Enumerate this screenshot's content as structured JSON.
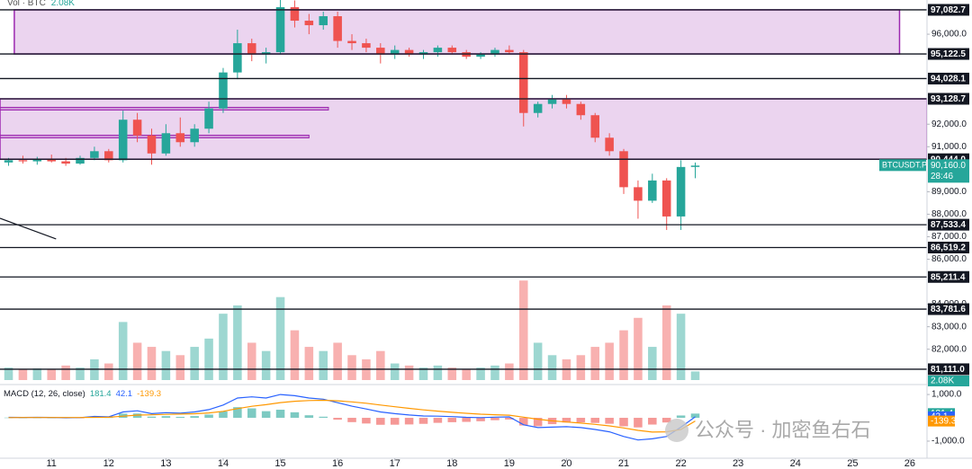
{
  "chart_data": {
    "type": "candlestick",
    "volume_title": "Vol · BTC",
    "x": [
      10.25,
      10.5,
      10.75,
      11,
      11.25,
      11.5,
      11.75,
      12,
      12.25,
      12.5,
      12.75,
      13,
      13.25,
      13.5,
      13.75,
      14,
      14.25,
      14.5,
      14.75,
      15,
      15.25,
      15.5,
      15.75,
      16,
      16.25,
      16.5,
      16.75,
      17,
      17.25,
      17.5,
      17.75,
      18,
      18.25,
      18.5,
      18.75,
      19,
      19.25,
      19.5,
      19.75,
      20,
      20.25,
      20.5,
      20.75,
      21,
      21.25,
      21.5,
      21.75,
      22,
      22.25
    ],
    "open": [
      90300,
      90400,
      90350,
      90450,
      90350,
      90250,
      90500,
      90800,
      90400,
      92200,
      91500,
      90700,
      91600,
      91200,
      91800,
      92700,
      94300,
      95600,
      95100,
      95200,
      97200,
      96600,
      96400,
      96800,
      95700,
      95600,
      95400,
      95100,
      95300,
      95100,
      95200,
      95400,
      95200,
      95000,
      95100,
      95300,
      95200,
      92500,
      92900,
      93100,
      92900,
      92400,
      91400,
      90800,
      89200,
      88600,
      89500,
      87900,
      90100
    ],
    "high": [
      90500,
      90600,
      90550,
      90650,
      90500,
      90600,
      91000,
      90900,
      92600,
      92500,
      91800,
      92000,
      92300,
      92000,
      93000,
      94500,
      96200,
      95800,
      95400,
      97600,
      97500,
      96900,
      97000,
      97000,
      96000,
      95800,
      95600,
      95500,
      95400,
      95300,
      95500,
      95500,
      95300,
      95200,
      95400,
      95500,
      95300,
      93000,
      93300,
      93300,
      93000,
      92500,
      91600,
      90900,
      89500,
      89800,
      89600,
      90400,
      90300
    ],
    "low": [
      90150,
      90250,
      90200,
      90300,
      90150,
      90200,
      90400,
      90300,
      90300,
      91200,
      90200,
      90600,
      91000,
      91000,
      91600,
      92500,
      94000,
      94800,
      94700,
      95100,
      96300,
      96000,
      96200,
      95400,
      95300,
      95200,
      94700,
      94900,
      95000,
      94900,
      95000,
      95100,
      94900,
      94900,
      95000,
      95100,
      91900,
      92300,
      92700,
      92700,
      92200,
      91200,
      90600,
      88900,
      87800,
      88500,
      87300,
      87300,
      89600
    ],
    "close": [
      90400,
      90350,
      90450,
      90350,
      90250,
      90500,
      90800,
      90400,
      92200,
      91500,
      90700,
      91600,
      91200,
      91800,
      92700,
      94300,
      95600,
      95100,
      95200,
      97200,
      96600,
      96400,
      96800,
      95700,
      95600,
      95400,
      95100,
      95300,
      95100,
      95200,
      95400,
      95200,
      95000,
      95100,
      95300,
      95200,
      92500,
      92900,
      93100,
      92900,
      92400,
      91400,
      90800,
      89200,
      88600,
      89500,
      87900,
      90100,
      90160
    ],
    "up_color": "#26a69a",
    "down_color": "#ef5350",
    "xlim": [
      10.1,
      26.3
    ],
    "xticks": [
      11,
      12,
      13,
      14,
      15,
      16,
      17,
      18,
      19,
      20,
      21,
      22,
      23,
      24,
      25,
      26
    ],
    "ylim": [
      80430,
      97520
    ],
    "yticks": [
      {
        "value": 96000,
        "label": "96,000.0"
      },
      {
        "value": 92000,
        "label": "92,000.0"
      },
      {
        "value": 91000,
        "label": "91,000.0"
      },
      {
        "value": 89000,
        "label": "89,000.0"
      },
      {
        "value": 88000,
        "label": "88,000.0"
      },
      {
        "value": 87000,
        "label": "87,000.0"
      },
      {
        "value": 86000,
        "label": "86,000.0"
      },
      {
        "value": 84000,
        "label": "84,000.0"
      },
      {
        "value": 83000,
        "label": "83,000.0"
      },
      {
        "value": 82000,
        "label": "82,000.0"
      }
    ],
    "levels": [
      {
        "value": 97082.7,
        "label": "97,082.7"
      },
      {
        "value": 95122.5,
        "label": "95,122.5"
      },
      {
        "value": 94028.1,
        "label": "94,028.1"
      },
      {
        "value": 93128.7,
        "label": "93,128.7"
      },
      {
        "value": 90444,
        "label": "90,444.0"
      },
      {
        "value": 87533.4,
        "label": "87,533.4"
      },
      {
        "value": 86519.2,
        "label": "86,519.2"
      },
      {
        "value": 85211.4,
        "label": "85,211.4"
      },
      {
        "value": 83781.6,
        "label": "83,781.6"
      },
      {
        "value": 81111,
        "label": "81,111.0"
      }
    ],
    "zones": [
      {
        "from": 95122.5,
        "to": 97082.7,
        "x": [
          10.35,
          25.82
        ]
      },
      {
        "from": 90444,
        "to": 93128.7
      }
    ],
    "zone_color": "#9c27b0",
    "rays": [
      {
        "price": 92690,
        "to": 15.84
      },
      {
        "price": 91453,
        "to": 15.5
      }
    ],
    "trend_line": {
      "x": [
        10.1,
        11.08
      ],
      "y": [
        87819,
        86900
      ]
    },
    "last_price": {
      "value": 90160,
      "label": "90,160.0",
      "symbol": "BTCUSDT.P",
      "timer": "28:46"
    },
    "volume": {
      "values": [
        3000,
        2500,
        2800,
        2600,
        3500,
        3000,
        5000,
        4000,
        14000,
        9000,
        8000,
        7000,
        6000,
        8000,
        10000,
        16000,
        18000,
        9000,
        7000,
        20000,
        12000,
        8000,
        7000,
        9000,
        6000,
        5000,
        7000,
        4000,
        3500,
        3000,
        3500,
        3000,
        2500,
        3000,
        3500,
        4000,
        24000,
        9000,
        6000,
        5000,
        6000,
        8000,
        9000,
        12000,
        15000,
        8000,
        18000,
        16000,
        2080
      ],
      "value_labels": {
        "48": "2.08K"
      },
      "ylim": [
        0,
        26000
      ]
    },
    "macd": {
      "title": "MACD (12, 26, close)",
      "histogram": [
        10,
        3,
        6,
        1,
        -11,
        -1,
        39,
        15,
        180,
        184,
        51,
        73,
        42,
        74,
        139,
        271,
        457,
        406,
        285,
        348,
        238,
        110,
        48,
        -81,
        -185,
        -244,
        -299,
        -295,
        -284,
        -259,
        -215,
        -188,
        -174,
        -147,
        -102,
        -73,
        -330,
        -360,
        -272,
        -202,
        -194,
        -219,
        -255,
        -364,
        -411,
        -289,
        -200,
        100,
        181.4
      ],
      "macd": [
        20,
        15,
        20,
        15,
        0,
        10,
        60,
        40,
        250,
        300,
        180,
        220,
        200,
        250,
        350,
        550,
        850,
        900,
        850,
        1000,
        950,
        850,
        800,
        650,
        500,
        380,
        250,
        180,
        120,
        80,
        70,
        50,
        20,
        10,
        30,
        40,
        -300,
        -420,
        -400,
        -380,
        -420,
        -500,
        -600,
        -800,
        -950,
        -900,
        -800,
        -400,
        42.1
      ],
      "signal": [
        10,
        12,
        14,
        14,
        11,
        11,
        21,
        25,
        70,
        116,
        129,
        147,
        158,
        176,
        211,
        279,
        393,
        494,
        565,
        652,
        712,
        740,
        752,
        731,
        685,
        624,
        549,
        475,
        404,
        339,
        285,
        238,
        194,
        157,
        132,
        113,
        30,
        -60,
        -128,
        -178,
        -226,
        -281,
        -345,
        -436,
        -539,
        -611,
        -600,
        -500,
        -139.3
      ],
      "macd_color": "#2962ff",
      "signal_color": "#ff9800",
      "ylim": [
        -1810,
        1350
      ],
      "yticks": [
        {
          "value": 1000,
          "label": "1,000.0"
        },
        {
          "value": -1000,
          "label": "-1,000.0"
        }
      ]
    },
    "watermark": "公众号 · 加密鱼右石"
  }
}
